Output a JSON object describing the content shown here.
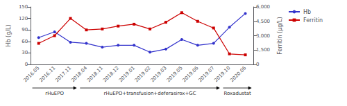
{
  "chart_data": {
    "type": "line",
    "categories": [
      "2016.05",
      "2016.11",
      "2017.11",
      "2018.04",
      "2018.11",
      "2018.12",
      "2019.01",
      "2019.02",
      "2019.03",
      "2019.05",
      "2019.06",
      "2019.07",
      "2019.10",
      "2020.06"
    ],
    "series": [
      {
        "name": "Hb",
        "color": "#3333cc",
        "marker": "circle",
        "values": [
          70,
          85,
          58,
          55,
          45,
          50,
          50,
          32,
          40,
          65,
          50,
          55,
          97,
          133
        ]
      },
      {
        "name": "Ferritin",
        "color": "#cc0000",
        "marker": "square",
        "axis": "y2",
        "values": [
          2200,
          3000,
          4800,
          3600,
          3700,
          4000,
          4200,
          3700,
          4400,
          5400,
          4500,
          3800,
          1100,
          1000
        ]
      }
    ],
    "ylabel": "Hb (g/L)",
    "y2label": "Ferritin (μg/L)",
    "ylim": [
      0,
      150
    ],
    "yticks": [
      0,
      30,
      60,
      90,
      120,
      150
    ],
    "y2lim": [
      0,
      6000
    ],
    "y2ticks": [
      0,
      1500,
      3000,
      4500,
      6000
    ],
    "annotations": [
      {
        "text": "rHuEPO",
        "start": "2016.05",
        "end": "2017.11"
      },
      {
        "text": "rHuEPO+transfusion+deferasirox+GC",
        "start": "2018.04",
        "end": "2019.07"
      },
      {
        "text": "Roxadustat",
        "start": "2019.10",
        "end": "2020.06"
      }
    ],
    "grid": false,
    "legend": "right"
  }
}
